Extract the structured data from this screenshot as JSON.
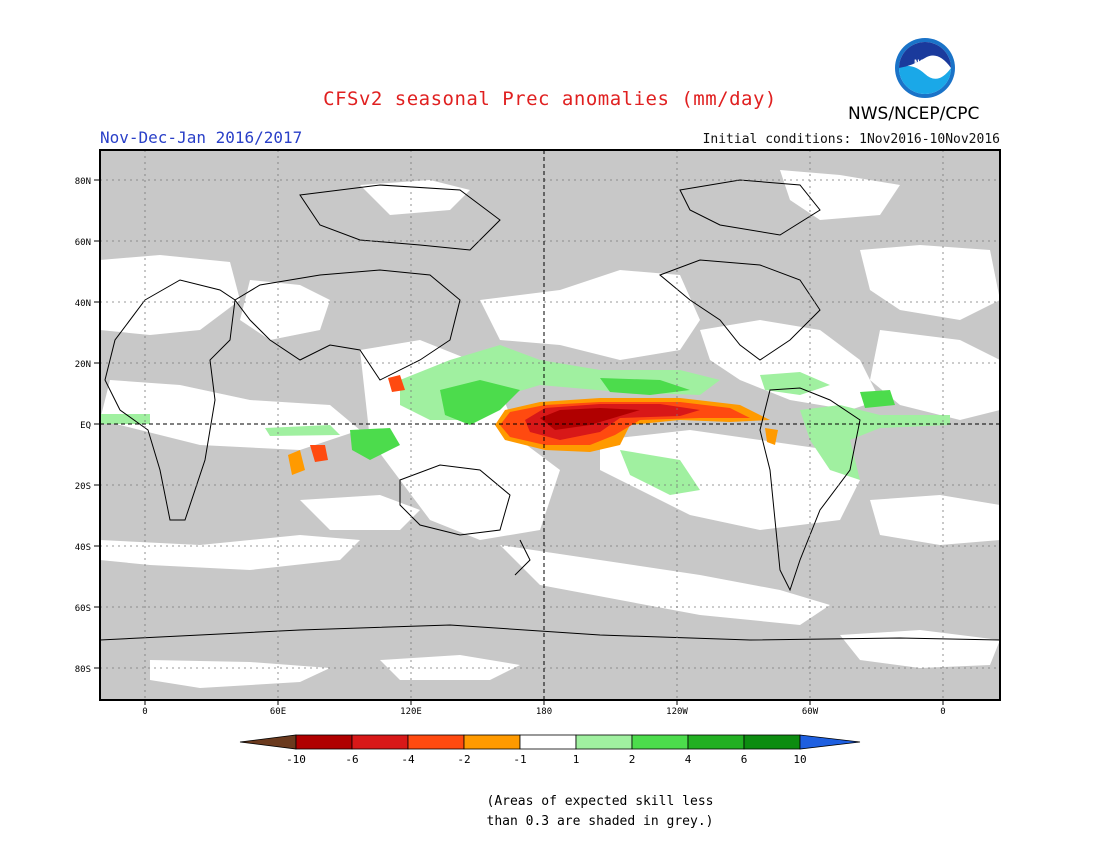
{
  "title": "CFSv2 seasonal Prec anomalies (mm/day)",
  "period": "Nov-Dec-Jan 2016/2017",
  "initial_conditions": "Initial conditions: 1Nov2016-10Nov2016",
  "agency": "NWS/NCEP/CPC",
  "logo_text": "NOAA",
  "note_lines": [
    "(Areas of expected skill less",
    "than 0.3 are shaded in grey.)"
  ],
  "map": {
    "lat_labels": [
      "80N",
      "60N",
      "40N",
      "20N",
      "EQ",
      "20S",
      "40S",
      "60S",
      "80S"
    ],
    "lon_labels": [
      "0",
      "60E",
      "120E",
      "180",
      "120W",
      "60W",
      "0"
    ]
  },
  "legend": {
    "labels": [
      "-10",
      "-6",
      "-4",
      "-2",
      "-1",
      "1",
      "2",
      "4",
      "6",
      "10"
    ],
    "colors": [
      "#6b3a1e",
      "#b00000",
      "#d81818",
      "#ff4a10",
      "#ff9a00",
      "#ffffff",
      "#a0f0a0",
      "#4cdc4c",
      "#22b022",
      "#0c8c10",
      "#1e5fe0"
    ]
  },
  "colors": {
    "title": "#e02020",
    "period": "#2a40c8",
    "grey_low_skill": "#c8c8c8"
  }
}
